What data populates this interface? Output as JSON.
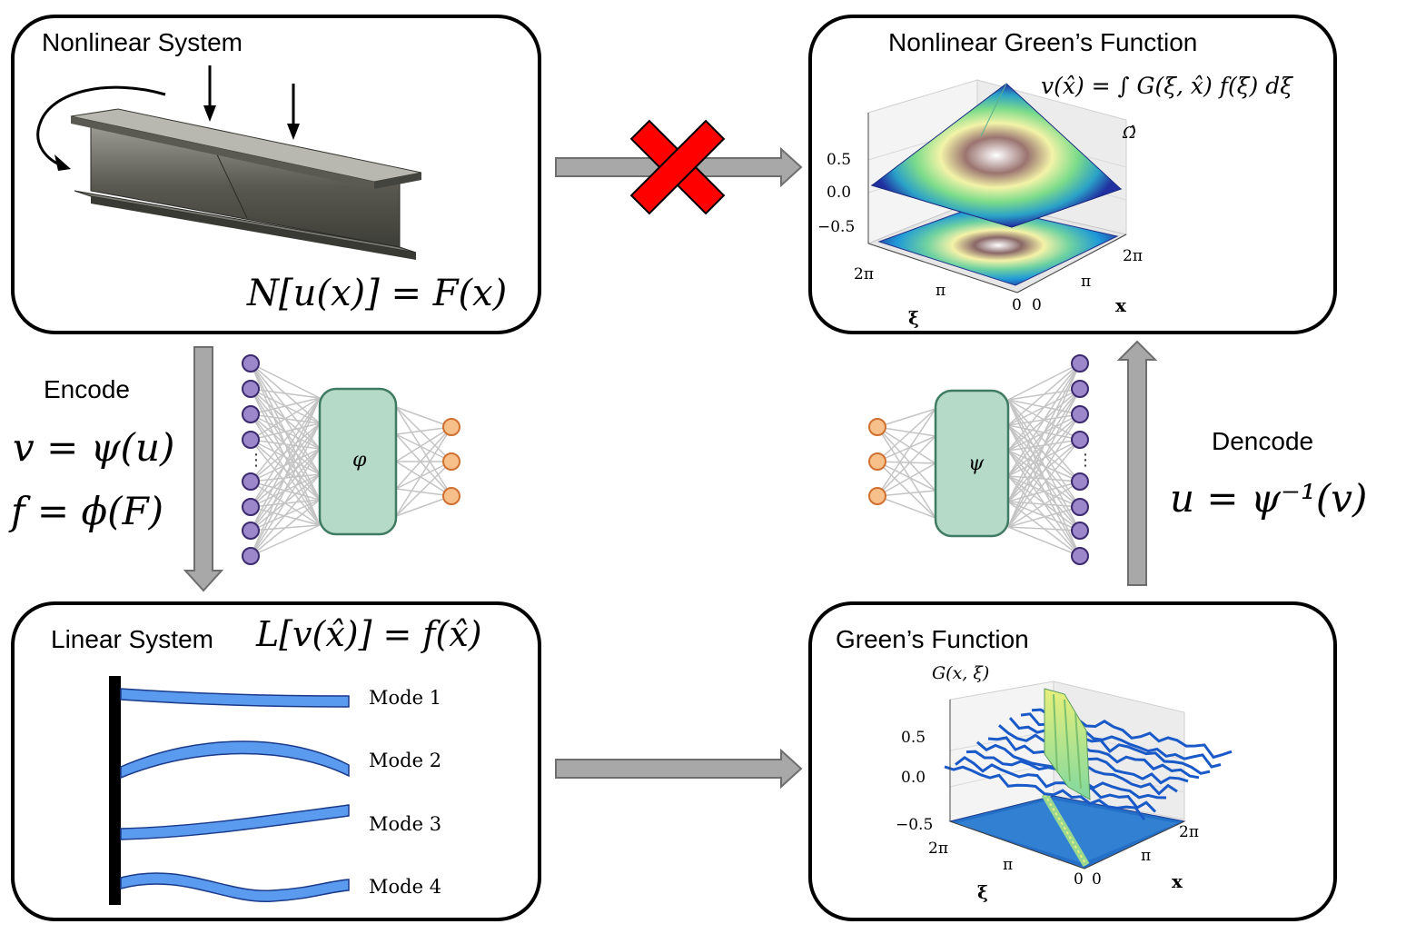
{
  "nonlinear_system": {
    "title": "Nonlinear System",
    "equation": "N[u(x)] = F(x)"
  },
  "nonlinear_greens": {
    "title": "Nonlinear Green’s Function",
    "equation": "v(x̂) = ∫ G(ξ, x̂) f(ξ) dξ",
    "domain": "Ω̂",
    "z_ticks": [
      "0.5",
      "0.0",
      "−0.5"
    ],
    "xi_ticks": [
      "2π",
      "π",
      "0"
    ],
    "x_ticks": [
      "0",
      "π",
      "2π"
    ],
    "xi_label": "ξ",
    "x_label": "x"
  },
  "encode": {
    "label": "Encode",
    "eq1": "v = ψ(u)",
    "eq2": "f = ϕ(F)",
    "net_symbol": "φ"
  },
  "decode": {
    "label": "Dencode",
    "eq": "u = ψ⁻¹(v)",
    "net_symbol": "ψ"
  },
  "linear_system": {
    "title": "Linear System",
    "equation": "L[v(x̂)] = f(x̂)",
    "modes": [
      "Mode 1",
      "Mode 2",
      "Mode 3",
      "Mode 4"
    ]
  },
  "greens": {
    "title": "Green’s Function",
    "zlabel": "G(x, ξ)",
    "z_ticks": [
      "0.5",
      "0.0",
      "−0.5"
    ],
    "xi_ticks": [
      "2π",
      "π",
      "0"
    ],
    "x_ticks": [
      "0",
      "π",
      "2π"
    ],
    "xi_label": "ξ",
    "x_label": "x"
  },
  "colors": {
    "arrow": "#a8a8a8",
    "cross": "#ff0000",
    "node_purple": "#9b87c9",
    "node_orange": "#f7c08a",
    "net_box": "#b5dbc8",
    "mode_blue": "#5b9bef"
  }
}
